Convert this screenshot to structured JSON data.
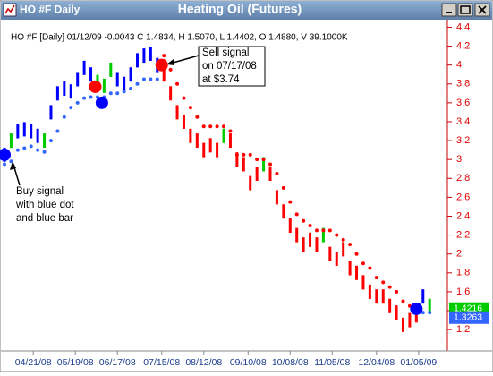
{
  "window_title": "HO #F Daily",
  "chart_data": {
    "type": "price-bars",
    "title": "Heating Oil (Futures)",
    "info": "HO #F [Daily] 01/12/09 -0.0043 C 1.4834, H 1.5070, L 1.4402, O 1.4880, V 39.1000K",
    "x": [
      0,
      3,
      6,
      9,
      12,
      15,
      18,
      21,
      24,
      27,
      30,
      33,
      36,
      39,
      42,
      45,
      48,
      51,
      54,
      57,
      60,
      63,
      66,
      69,
      72,
      75,
      78,
      81,
      84,
      87,
      90,
      93,
      96,
      99,
      102,
      105,
      108,
      111,
      114,
      117,
      120,
      123,
      126,
      129,
      132,
      135,
      138,
      141,
      144,
      147,
      150,
      153,
      156,
      159,
      162,
      165,
      168,
      171,
      174,
      177,
      180,
      183,
      186,
      189,
      192
    ],
    "xlim": [
      0,
      200
    ],
    "xticks": [
      {
        "value": 13,
        "label": "04/21/08"
      },
      {
        "value": 32,
        "label": "05/19/08"
      },
      {
        "value": 51,
        "label": "06/17/08"
      },
      {
        "value": 71,
        "label": "07/15/08"
      },
      {
        "value": 90,
        "label": "08/12/08"
      },
      {
        "value": 110,
        "label": "09/10/08"
      },
      {
        "value": 129,
        "label": "10/08/08"
      },
      {
        "value": 148,
        "label": "11/05/08"
      },
      {
        "value": 168,
        "label": "12/04/08"
      },
      {
        "value": 187,
        "label": "01/05/09"
      }
    ],
    "ylim": [
      1.04,
      4.48
    ],
    "yticks": [
      1.2,
      1.4,
      1.6,
      1.8,
      2,
      2.2,
      2.4,
      2.6,
      2.8,
      3,
      3.2,
      3.4,
      3.6,
      3.8,
      4,
      4.2,
      4.4
    ],
    "series": [
      {
        "name": "Price",
        "values": [
          3.05,
          3.2,
          3.3,
          3.32,
          3.3,
          3.25,
          3.2,
          3.5,
          3.7,
          3.75,
          3.72,
          3.85,
          3.97,
          3.9,
          3.82,
          3.78,
          3.95,
          3.85,
          3.8,
          3.9,
          4.05,
          4.1,
          4.12,
          4.0,
          3.9,
          3.7,
          3.5,
          3.4,
          3.25,
          3.2,
          3.1,
          3.15,
          3.1,
          3.25,
          3.2,
          3.0,
          2.95,
          2.75,
          2.85,
          2.95,
          2.85,
          2.6,
          2.45,
          2.3,
          2.2,
          2.1,
          2.15,
          2.1,
          2.2,
          2.0,
          1.95,
          2.05,
          1.85,
          1.8,
          1.7,
          1.6,
          1.55,
          1.55,
          1.45,
          1.38,
          1.25,
          1.3,
          1.35,
          1.55,
          1.45
        ],
        "colors": [
          "#0000ff",
          "#00cc00",
          "#0000ff",
          "#0000ff",
          "#0000ff",
          "#0000ff",
          "#00cc00",
          "#0000ff",
          "#0000ff",
          "#0000ff",
          "#0000ff",
          "#0000ff",
          "#0000ff",
          "#0000ff",
          "#00cc00",
          "#00cc00",
          "#00cc00",
          "#0000ff",
          "#0000ff",
          "#0000ff",
          "#0000ff",
          "#0000ff",
          "#0000ff",
          "#0000ff",
          "#ff0000",
          "#ff0000",
          "#ff0000",
          "#ff0000",
          "#ff0000",
          "#ff0000",
          "#ff0000",
          "#ff0000",
          "#ff0000",
          "#00cc00",
          "#ff0000",
          "#ff0000",
          "#ff0000",
          "#ff0000",
          "#ff0000",
          "#00cc00",
          "#ff0000",
          "#ff0000",
          "#ff0000",
          "#ff0000",
          "#ff0000",
          "#ff0000",
          "#ff0000",
          "#ff0000",
          "#00cc00",
          "#ff0000",
          "#ff0000",
          "#ff0000",
          "#ff0000",
          "#ff0000",
          "#ff0000",
          "#ff0000",
          "#ff0000",
          "#ff0000",
          "#ff0000",
          "#ff0000",
          "#ff0000",
          "#ff0000",
          "#ff0000",
          "#0000ff",
          "#00cc00"
        ]
      },
      {
        "name": "Stop",
        "values": [
          2.95,
          2.98,
          3.1,
          3.12,
          3.14,
          3.1,
          3.08,
          3.2,
          3.3,
          3.45,
          3.55,
          3.6,
          3.65,
          3.66,
          3.66,
          3.66,
          3.7,
          3.7,
          3.72,
          3.75,
          3.8,
          3.85,
          3.85,
          3.85,
          4.1,
          3.95,
          3.8,
          3.65,
          3.55,
          3.45,
          3.35,
          3.35,
          3.35,
          3.35,
          3.3,
          3.05,
          3.05,
          3.05,
          3.0,
          3.0,
          2.95,
          2.85,
          2.7,
          2.55,
          2.42,
          2.35,
          2.3,
          2.25,
          2.25,
          2.25,
          2.2,
          2.15,
          2.1,
          2.0,
          1.9,
          1.85,
          1.75,
          1.7,
          1.65,
          1.6,
          1.5,
          1.45,
          1.45,
          1.38,
          1.38
        ],
        "colors": [
          "#3366ff",
          "#3366ff",
          "#3366ff",
          "#3366ff",
          "#3366ff",
          "#3366ff",
          "#3366ff",
          "#3366ff",
          "#3366ff",
          "#3366ff",
          "#3366ff",
          "#3366ff",
          "#3366ff",
          "#3366ff",
          "#3366ff",
          "#3366ff",
          "#3366ff",
          "#3366ff",
          "#3366ff",
          "#3366ff",
          "#3366ff",
          "#3366ff",
          "#3366ff",
          "#3366ff",
          "#ff0000",
          "#ff0000",
          "#ff0000",
          "#ff0000",
          "#ff0000",
          "#ff0000",
          "#ff0000",
          "#ff0000",
          "#ff0000",
          "#ff0000",
          "#ff0000",
          "#ff0000",
          "#ff0000",
          "#ff0000",
          "#ff0000",
          "#ff0000",
          "#ff0000",
          "#ff0000",
          "#ff0000",
          "#ff0000",
          "#ff0000",
          "#ff0000",
          "#ff0000",
          "#ff0000",
          "#ff0000",
          "#ff0000",
          "#ff0000",
          "#ff0000",
          "#ff0000",
          "#ff0000",
          "#ff0000",
          "#ff0000",
          "#ff0000",
          "#ff0000",
          "#ff0000",
          "#ff0000",
          "#ff0000",
          "#ff0000",
          "#ff0000",
          "#3366ff",
          "#3366ff"
        ]
      }
    ],
    "signals": [
      {
        "x": 0,
        "value": 3.05,
        "color": "#0000ff"
      },
      {
        "x": 41,
        "value": 3.77,
        "color": "#ff0000"
      },
      {
        "x": 44,
        "value": 3.6,
        "color": "#0000ff"
      },
      {
        "x": 71,
        "value": 4.0,
        "color": "#ff0000"
      },
      {
        "x": 186,
        "value": 1.42,
        "color": "#0000ff"
      }
    ],
    "price_badges": [
      {
        "value": 1.4216,
        "color": "#00cc00"
      },
      {
        "value": 1.3263,
        "color": "#3366ff"
      }
    ],
    "annotations": [
      {
        "lines": [
          "Sell signal",
          "on 07/17/08",
          "at $3.74"
        ]
      },
      {
        "lines": [
          "Buy signal",
          "with blue dot",
          "and blue bar"
        ]
      }
    ]
  }
}
